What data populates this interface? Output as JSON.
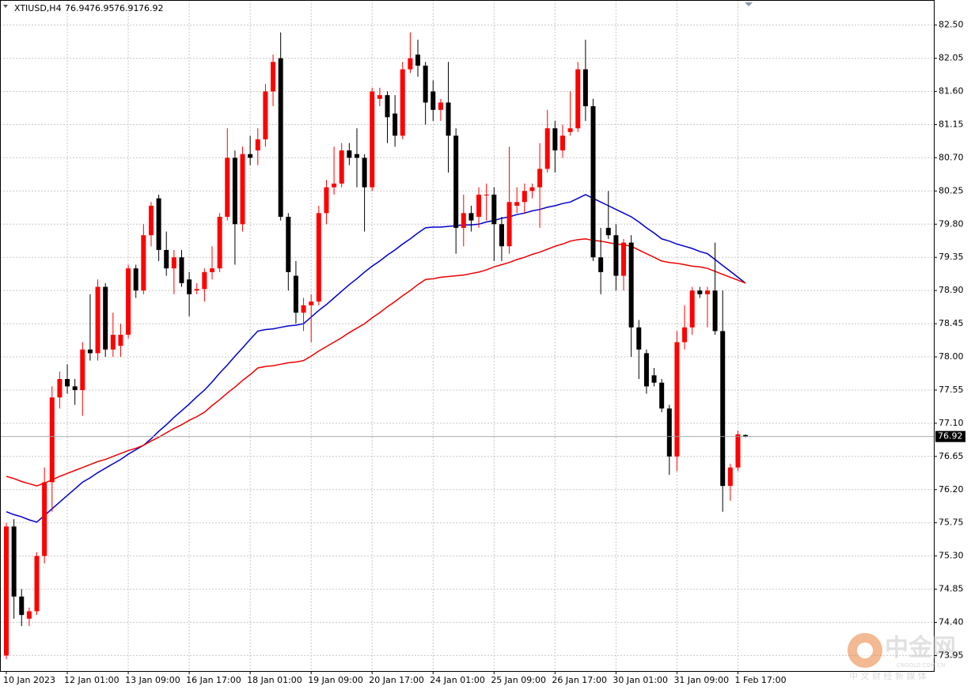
{
  "chart_data": {
    "type": "candlestick",
    "symbol": "XTIUSD,H4",
    "up_color": "#ff0000",
    "down_color": "#000000",
    "ylim": [
      73.74,
      82.84
    ],
    "yticks": [
      {
        "value": 82.5,
        "label": "82.50"
      },
      {
        "value": 82.05,
        "label": "82.05"
      },
      {
        "value": 81.6,
        "label": "81.60"
      },
      {
        "value": 81.15,
        "label": "81.15"
      },
      {
        "value": 80.7,
        "label": "80.70"
      },
      {
        "value": 80.25,
        "label": "80.25"
      },
      {
        "value": 79.8,
        "label": "79.80"
      },
      {
        "value": 79.35,
        "label": "79.35"
      },
      {
        "value": 78.9,
        "label": "78.90"
      },
      {
        "value": 78.45,
        "label": "78.45"
      },
      {
        "value": 78,
        "label": "78.00"
      },
      {
        "value": 77.55,
        "label": "77.55"
      },
      {
        "value": 77.1,
        "label": "77.10"
      },
      {
        "value": 76.65,
        "label": "76.65"
      },
      {
        "value": 76.2,
        "label": "76.20"
      },
      {
        "value": 75.75,
        "label": "75.75"
      },
      {
        "value": 75.3,
        "label": "75.30"
      },
      {
        "value": 74.85,
        "label": "74.85"
      },
      {
        "value": 74.4,
        "label": "74.40"
      },
      {
        "value": 73.95,
        "label": "73.95"
      }
    ],
    "grid": true,
    "categories": [
      "10 Jan 2023",
      null,
      null,
      null,
      null,
      null,
      null,
      null,
      "12 Jan 01:00",
      null,
      null,
      null,
      null,
      null,
      null,
      null,
      "13 Jan 09:00",
      null,
      null,
      null,
      null,
      null,
      null,
      null,
      "16 Jan 17:00",
      null,
      null,
      null,
      null,
      null,
      null,
      null,
      "18 Jan 01:00",
      null,
      null,
      null,
      null,
      null,
      null,
      null,
      "19 Jan 09:00",
      null,
      null,
      null,
      null,
      null,
      null,
      null,
      "20 Jan 17:00",
      null,
      null,
      null,
      null,
      null,
      null,
      null,
      "24 Jan 01:00",
      null,
      null,
      null,
      null,
      null,
      null,
      null,
      "25 Jan 09:00",
      null,
      null,
      null,
      null,
      null,
      null,
      null,
      "26 Jan 17:00",
      null,
      null,
      null,
      null,
      null,
      null,
      null,
      "30 Jan 01:00",
      null,
      null,
      null,
      null,
      null,
      null,
      null,
      "31 Jan 09:00",
      null,
      null,
      null,
      null,
      null,
      null,
      null,
      "1 Feb 17:00",
      null
    ],
    "ohlc": [
      [
        73.95,
        75.75,
        73.9,
        75.7
      ],
      [
        75.7,
        75.8,
        74.45,
        74.75
      ],
      [
        74.75,
        74.85,
        74.35,
        74.5
      ],
      [
        74.45,
        74.6,
        74.35,
        74.55
      ],
      [
        74.55,
        75.35,
        74.5,
        75.3
      ],
      [
        75.3,
        76.5,
        75.2,
        76.3
      ],
      [
        76.3,
        77.6,
        75.9,
        77.45
      ],
      [
        77.45,
        77.8,
        77.3,
        77.7
      ],
      [
        77.7,
        77.9,
        77.5,
        77.6
      ],
      [
        77.6,
        77.7,
        77.35,
        77.55
      ],
      [
        77.55,
        78.2,
        77.2,
        78.1
      ],
      [
        78.1,
        78.85,
        77.95,
        78.05
      ],
      [
        78.05,
        79.05,
        77.95,
        78.95
      ],
      [
        78.95,
        79.0,
        78.0,
        78.1
      ],
      [
        78.1,
        78.6,
        78.0,
        78.3
      ],
      [
        78.15,
        78.45,
        78.0,
        78.3
      ],
      [
        78.3,
        79.25,
        78.25,
        79.2
      ],
      [
        79.2,
        79.25,
        78.8,
        78.9
      ],
      [
        78.9,
        79.8,
        78.85,
        79.65
      ],
      [
        79.65,
        80.1,
        79.5,
        80.05
      ],
      [
        80.15,
        80.2,
        79.3,
        79.45
      ],
      [
        79.45,
        79.7,
        79.1,
        79.2
      ],
      [
        79.2,
        79.45,
        78.85,
        79.35
      ],
      [
        79.35,
        79.45,
        78.95,
        79.0
      ],
      [
        79.05,
        79.15,
        78.55,
        78.85
      ],
      [
        78.9,
        79.0,
        78.85,
        78.92
      ],
      [
        78.92,
        79.2,
        78.75,
        79.15
      ],
      [
        79.15,
        79.5,
        79.05,
        79.2
      ],
      [
        79.2,
        79.95,
        79.15,
        79.9
      ],
      [
        79.9,
        81.1,
        79.85,
        80.7
      ],
      [
        80.7,
        80.8,
        79.25,
        79.8
      ],
      [
        79.8,
        80.85,
        79.7,
        80.75
      ],
      [
        80.75,
        81.0,
        80.6,
        80.7
      ],
      [
        80.8,
        81.1,
        80.6,
        80.95
      ],
      [
        80.95,
        81.7,
        80.85,
        81.6
      ],
      [
        81.6,
        82.1,
        81.4,
        82.0
      ],
      [
        82.05,
        82.4,
        79.85,
        79.9
      ],
      [
        79.9,
        79.95,
        78.9,
        79.15
      ],
      [
        79.1,
        79.3,
        78.45,
        78.6
      ],
      [
        78.6,
        78.8,
        78.35,
        78.7
      ],
      [
        78.7,
        78.85,
        78.2,
        78.75
      ],
      [
        78.75,
        80.05,
        78.7,
        79.95
      ],
      [
        79.95,
        80.4,
        79.8,
        80.3
      ],
      [
        80.3,
        80.85,
        80.2,
        80.35
      ],
      [
        80.35,
        80.9,
        80.3,
        80.8
      ],
      [
        80.8,
        80.9,
        80.6,
        80.7
      ],
      [
        80.75,
        81.1,
        80.3,
        80.7
      ],
      [
        80.7,
        80.75,
        79.7,
        80.3
      ],
      [
        80.3,
        81.65,
        80.25,
        81.6
      ],
      [
        81.5,
        81.65,
        81.4,
        81.55
      ],
      [
        81.55,
        81.6,
        80.9,
        81.25
      ],
      [
        81.3,
        81.55,
        80.85,
        81.0
      ],
      [
        81.0,
        82.0,
        80.95,
        81.9
      ],
      [
        81.9,
        82.4,
        81.85,
        82.05
      ],
      [
        82.1,
        82.3,
        81.8,
        81.95
      ],
      [
        81.95,
        82.0,
        81.15,
        81.45
      ],
      [
        81.6,
        81.75,
        81.2,
        81.35
      ],
      [
        81.35,
        81.5,
        81.2,
        81.45
      ],
      [
        81.45,
        82.0,
        80.5,
        81.0
      ],
      [
        81.0,
        81.1,
        79.4,
        79.75
      ],
      [
        79.75,
        80.2,
        79.5,
        79.95
      ],
      [
        79.95,
        80.05,
        79.7,
        79.85
      ],
      [
        79.9,
        80.3,
        79.75,
        80.2
      ],
      [
        80.2,
        80.35,
        79.85,
        80.2
      ],
      [
        80.2,
        80.3,
        79.3,
        79.8
      ],
      [
        79.8,
        79.9,
        79.3,
        79.5
      ],
      [
        79.5,
        80.85,
        79.4,
        80.1
      ],
      [
        80.05,
        80.3,
        79.95,
        80.1
      ],
      [
        80.1,
        80.35,
        79.95,
        80.25
      ],
      [
        80.25,
        80.35,
        80.15,
        80.3
      ],
      [
        80.3,
        80.9,
        79.75,
        80.55
      ],
      [
        80.55,
        81.35,
        80.5,
        81.1
      ],
      [
        81.1,
        81.2,
        80.5,
        80.8
      ],
      [
        80.8,
        81.15,
        80.7,
        81.0
      ],
      [
        81.05,
        81.6,
        81.0,
        81.1
      ],
      [
        81.1,
        82.0,
        81.05,
        81.9
      ],
      [
        81.9,
        82.3,
        81.2,
        81.4
      ],
      [
        81.4,
        81.5,
        79.3,
        79.35
      ],
      [
        79.35,
        79.75,
        78.85,
        79.15
      ],
      [
        79.75,
        80.25,
        79.6,
        79.65
      ],
      [
        79.65,
        79.8,
        78.9,
        79.1
      ],
      [
        79.1,
        79.6,
        78.9,
        79.55
      ],
      [
        79.55,
        79.65,
        78.0,
        78.4
      ],
      [
        78.4,
        78.5,
        77.7,
        78.1
      ],
      [
        78.05,
        78.1,
        77.5,
        77.6
      ],
      [
        77.75,
        77.85,
        77.6,
        77.65
      ],
      [
        77.65,
        77.7,
        77.25,
        77.3
      ],
      [
        77.3,
        77.35,
        76.4,
        76.65
      ],
      [
        76.65,
        78.35,
        76.45,
        78.2
      ],
      [
        78.2,
        78.7,
        78.1,
        78.4
      ],
      [
        78.4,
        78.95,
        78.3,
        78.9
      ],
      [
        78.9,
        78.95,
        78.8,
        78.85
      ],
      [
        78.85,
        78.95,
        78.4,
        78.9
      ],
      [
        78.9,
        79.55,
        78.3,
        78.35
      ],
      [
        78.35,
        78.9,
        75.9,
        76.25
      ],
      [
        76.25,
        76.55,
        76.05,
        76.5
      ],
      [
        76.5,
        77.0,
        76.45,
        76.95
      ],
      [
        76.94,
        76.95,
        76.91,
        76.92
      ]
    ],
    "series": [
      {
        "color": "#0000cc",
        "values": [
          75.9,
          75.86,
          75.83,
          75.79,
          75.76,
          75.85,
          75.94,
          76.03,
          76.12,
          76.21,
          76.3,
          76.36,
          76.43,
          76.49,
          76.55,
          76.61,
          76.68,
          76.74,
          76.8,
          76.89,
          76.99,
          77.08,
          77.18,
          77.27,
          77.36,
          77.46,
          77.55,
          77.66,
          77.78,
          77.89,
          78.01,
          78.12,
          78.24,
          78.35,
          78.37,
          78.38,
          78.4,
          78.42,
          78.43,
          78.45,
          78.54,
          78.63,
          78.71,
          78.8,
          78.89,
          78.98,
          79.06,
          79.15,
          79.23,
          79.3,
          79.38,
          79.45,
          79.53,
          79.6,
          79.68,
          79.75,
          79.76,
          79.76,
          79.77,
          79.78,
          79.79,
          79.79,
          79.8,
          79.83,
          79.85,
          79.88,
          79.9,
          79.93,
          79.95,
          79.98,
          80,
          80.03,
          80.05,
          80.08,
          80.1,
          80.15,
          80.2,
          80.15,
          80.1,
          80.05,
          80,
          79.95,
          79.9,
          79.83,
          79.75,
          79.68,
          79.6,
          79.57,
          79.53,
          79.5,
          79.47,
          79.43,
          79.4,
          79.32,
          79.24,
          79.16,
          79.08,
          79.0
        ]
      },
      {
        "color": "#ee0000",
        "values": [
          76.38,
          76.35,
          76.31,
          76.28,
          76.25,
          76.29,
          76.33,
          76.38,
          76.42,
          76.46,
          76.5,
          76.54,
          76.58,
          76.61,
          76.65,
          76.69,
          76.73,
          76.76,
          76.8,
          76.86,
          76.91,
          76.97,
          77.03,
          77.08,
          77.14,
          77.19,
          77.25,
          77.34,
          77.42,
          77.51,
          77.59,
          77.68,
          77.76,
          77.85,
          77.87,
          77.88,
          77.9,
          77.92,
          77.93,
          77.95,
          78.01,
          78.08,
          78.14,
          78.2,
          78.26,
          78.33,
          78.39,
          78.45,
          78.53,
          78.6,
          78.68,
          78.75,
          78.83,
          78.9,
          78.98,
          79.05,
          79.06,
          79.08,
          79.09,
          79.1,
          79.11,
          79.13,
          79.15,
          79.18,
          79.22,
          79.25,
          79.28,
          79.32,
          79.35,
          79.39,
          79.42,
          79.46,
          79.5,
          79.53,
          79.57,
          79.59,
          79.6,
          79.58,
          79.57,
          79.55,
          79.53,
          79.52,
          79.5,
          79.45,
          79.4,
          79.35,
          79.3,
          79.28,
          79.27,
          79.25,
          79.23,
          79.22,
          79.2,
          79.16,
          79.12,
          79.08,
          79.04,
          79.0
        ]
      }
    ],
    "watermark": {
      "logo": "中金网",
      "site": "CNGOLD.COM.CN",
      "slogan": "中 文 财 经 新 媒 体"
    }
  }
}
